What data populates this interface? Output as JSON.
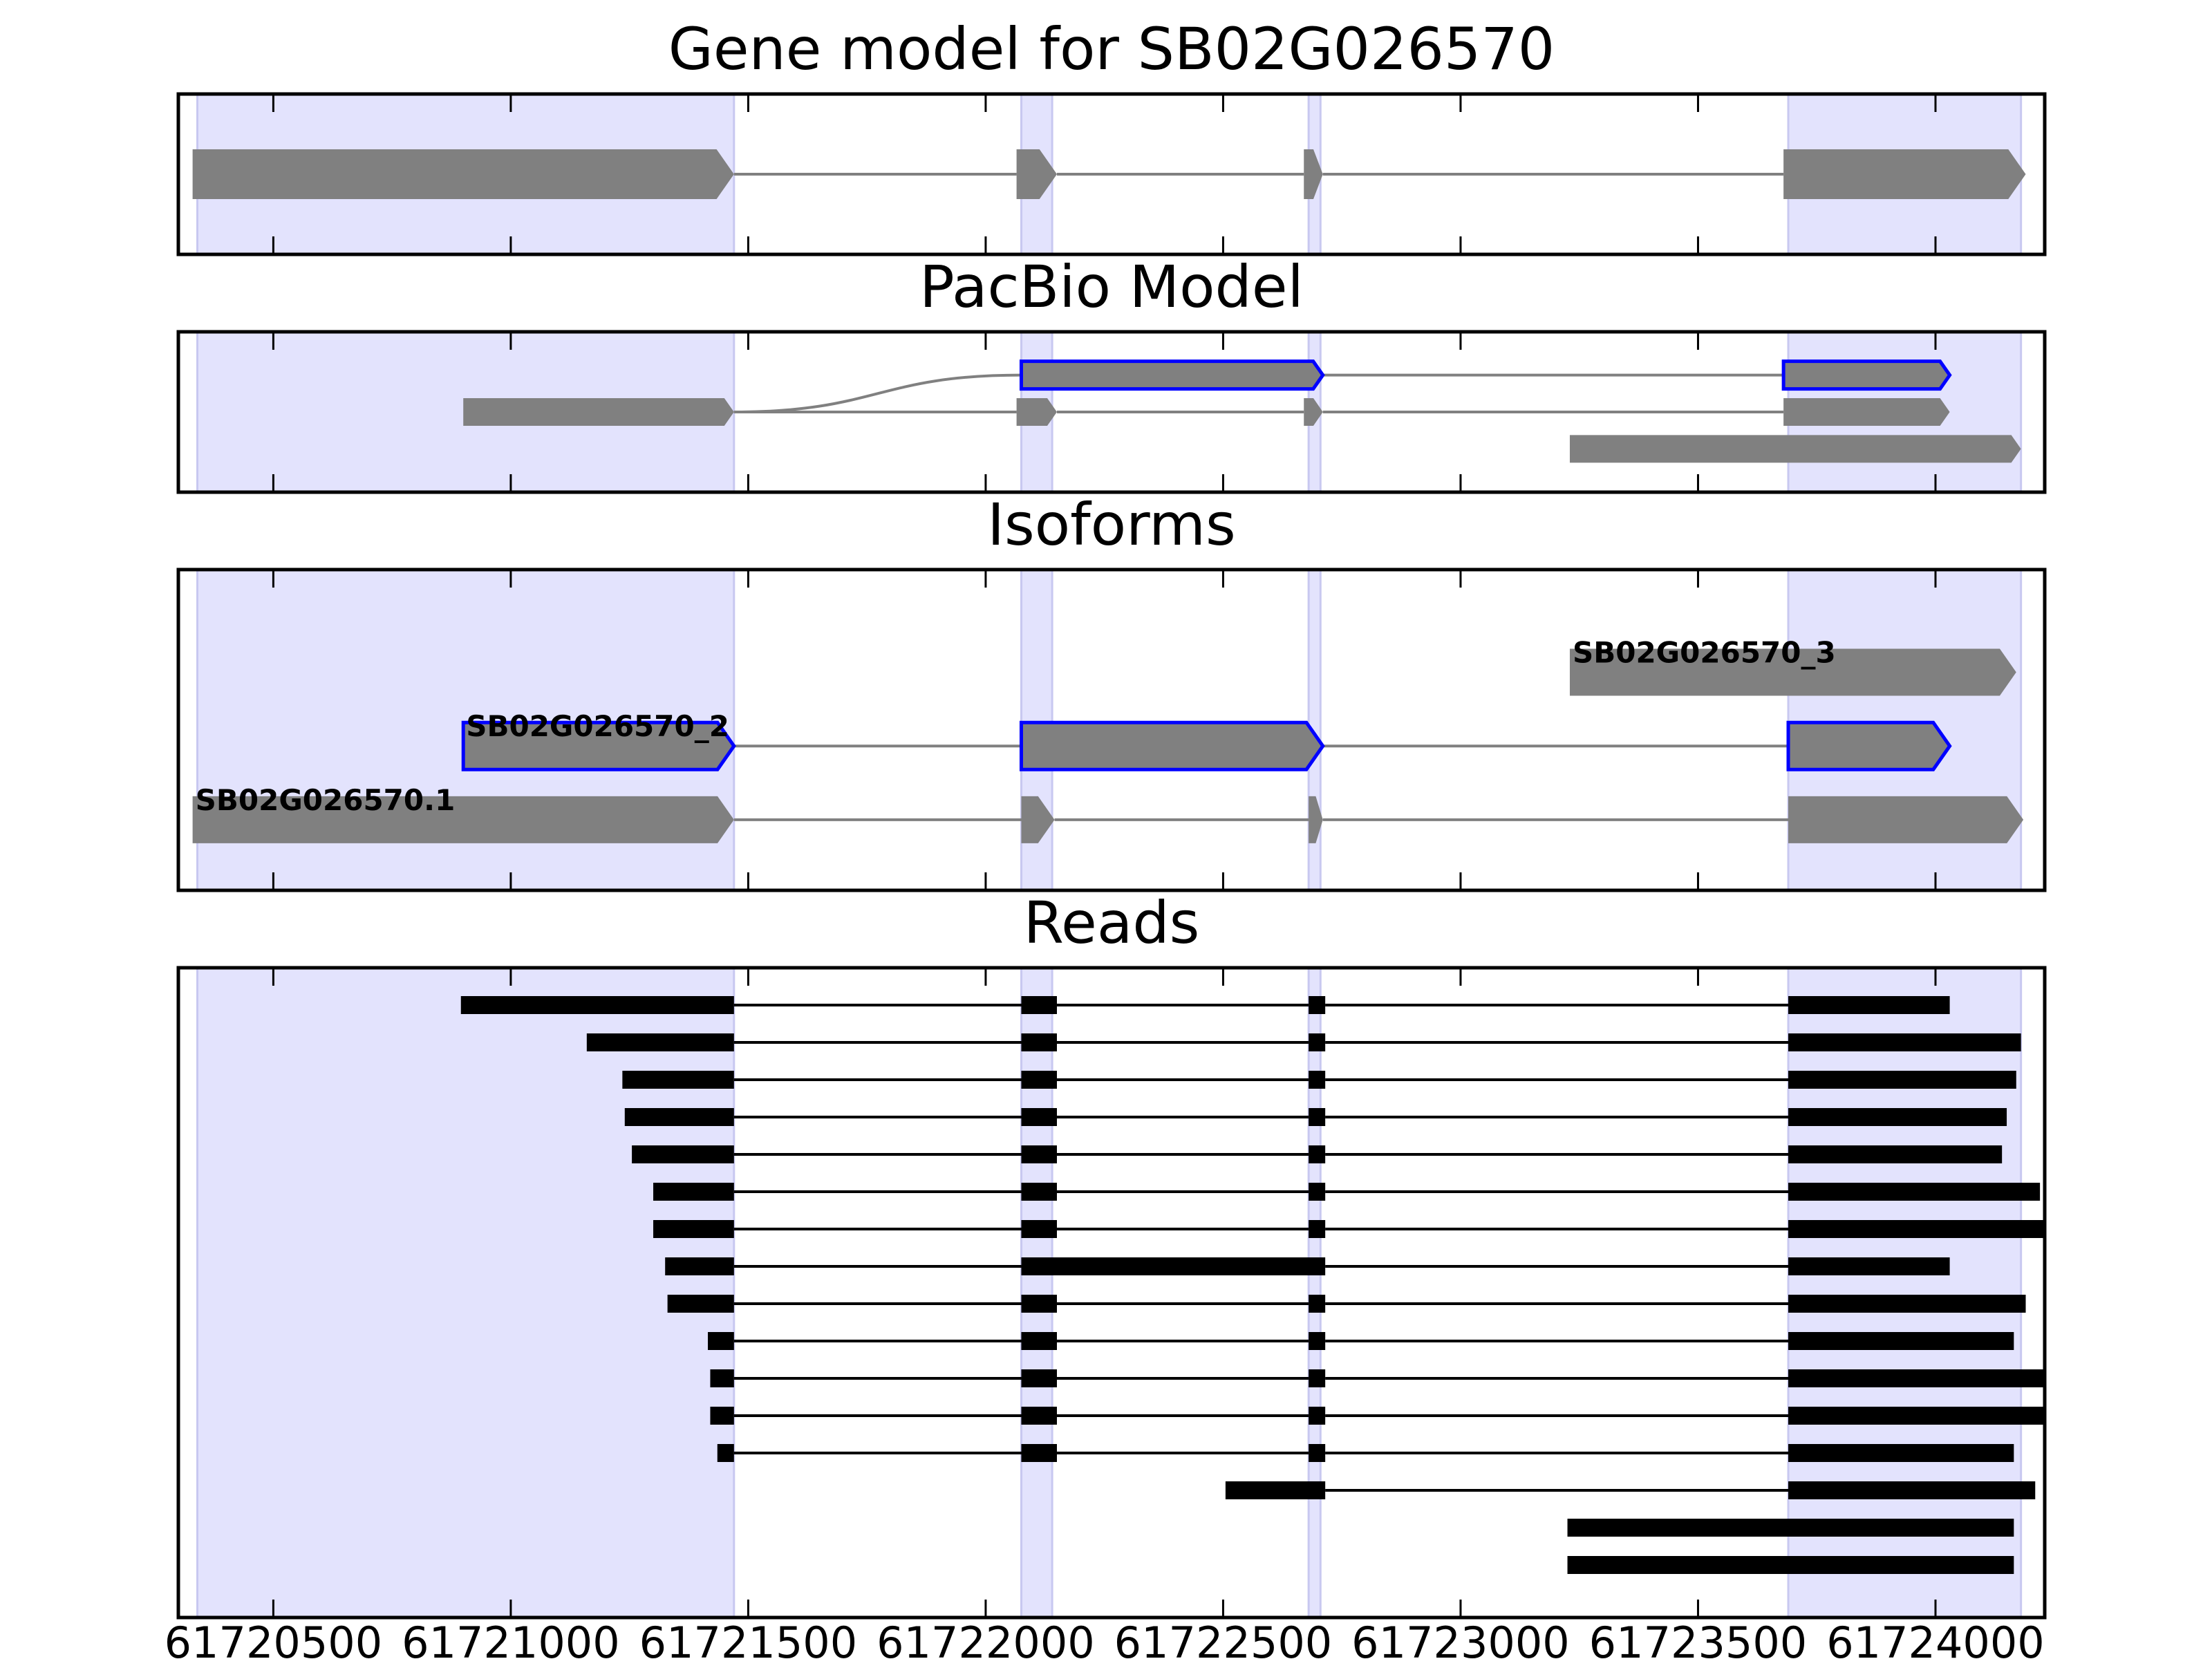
{
  "chart_data": {
    "type": "gene-track",
    "x_axis": {
      "xlim": [
        61720300,
        61724230
      ],
      "ticks": [
        61720500,
        61721000,
        61721500,
        61722000,
        61722500,
        61723000,
        61723500,
        61724000
      ],
      "tick_labels": [
        "61720500",
        "61721000",
        "61721500",
        "61722000",
        "61722500",
        "61723000",
        "61723500",
        "61724000"
      ]
    },
    "exon_highlights": [
      [
        61720340,
        61721470
      ],
      [
        61722075,
        61722140
      ],
      [
        61722680,
        61722705
      ],
      [
        61723690,
        61724180
      ]
    ],
    "panels": [
      {
        "key": "gene_model",
        "title": "Gene model for SB02G026570",
        "tracks": [
          {
            "y": 0.5,
            "exons": [
              [
                61720330,
                61721470
              ],
              [
                61722065,
                61722150
              ],
              [
                61722670,
                61722710
              ],
              [
                61723680,
                61724190
              ]
            ],
            "strand": "+",
            "highlight": false
          }
        ]
      },
      {
        "key": "pacbio_model",
        "title": "PacBio Model",
        "tracks": [
          {
            "y": 0.73,
            "exons": [
              [
                61722075,
                61722710
              ],
              [
                61723680,
                61724030
              ]
            ],
            "strand": "+",
            "highlight": true,
            "curved_from": [
              61721470,
              0.5
            ]
          },
          {
            "y": 0.5,
            "exons": [
              [
                61720900,
                61721470
              ],
              [
                61722065,
                61722150
              ],
              [
                61722670,
                61722710
              ],
              [
                61723680,
                61724030
              ]
            ],
            "strand": "+",
            "highlight": false
          },
          {
            "y": 0.27,
            "exons": [
              [
                61723230,
                61724180
              ]
            ],
            "strand": "+",
            "highlight": false
          }
        ]
      },
      {
        "key": "isoforms",
        "title": "Isoforms",
        "tracks": [
          {
            "y": 0.68,
            "label": "SB02G026570_3",
            "exons": [
              [
                61723230,
                61724170
              ]
            ],
            "strand": "+",
            "highlight": false
          },
          {
            "y": 0.45,
            "label": "SB02G026570_2",
            "exons": [
              [
                61720900,
                61721470
              ],
              [
                61722075,
                61722710
              ],
              [
                61723690,
                61724030
              ]
            ],
            "strand": "+",
            "highlight": true
          },
          {
            "y": 0.22,
            "label": "SB02G026570.1",
            "exons": [
              [
                61720330,
                61721470
              ],
              [
                61722075,
                61722145
              ],
              [
                61722680,
                61722710
              ],
              [
                61723690,
                61724185
              ]
            ],
            "strand": "+",
            "highlight": false
          }
        ]
      },
      {
        "key": "reads",
        "title": "Reads",
        "reads": [
          [
            [
              61720895,
              61721470
            ],
            [
              61722075,
              61722150
            ],
            [
              61722680,
              61722715
            ],
            [
              61723690,
              61724030
            ]
          ],
          [
            [
              61721160,
              61721470
            ],
            [
              61722075,
              61722150
            ],
            [
              61722680,
              61722715
            ],
            [
              61723690,
              61724180
            ]
          ],
          [
            [
              61721235,
              61721470
            ],
            [
              61722075,
              61722150
            ],
            [
              61722680,
              61722715
            ],
            [
              61723690,
              61724170
            ]
          ],
          [
            [
              61721240,
              61721470
            ],
            [
              61722075,
              61722150
            ],
            [
              61722680,
              61722715
            ],
            [
              61723690,
              61724150
            ]
          ],
          [
            [
              61721255,
              61721470
            ],
            [
              61722075,
              61722150
            ],
            [
              61722680,
              61722715
            ],
            [
              61723690,
              61724140
            ]
          ],
          [
            [
              61721300,
              61721470
            ],
            [
              61722075,
              61722150
            ],
            [
              61722680,
              61722715
            ],
            [
              61723690,
              61724220
            ]
          ],
          [
            [
              61721300,
              61721470
            ],
            [
              61722075,
              61722150
            ],
            [
              61722680,
              61722715
            ],
            [
              61723690,
              61724230
            ]
          ],
          [
            [
              61721325,
              61721470
            ],
            [
              61722075,
              61722715
            ],
            [
              61723690,
              61724030
            ]
          ],
          [
            [
              61721330,
              61721470
            ],
            [
              61722075,
              61722150
            ],
            [
              61722680,
              61722715
            ],
            [
              61723690,
              61724190
            ]
          ],
          [
            [
              61721415,
              61721470
            ],
            [
              61722075,
              61722150
            ],
            [
              61722680,
              61722715
            ],
            [
              61723690,
              61724165
            ]
          ],
          [
            [
              61721420,
              61721470
            ],
            [
              61722075,
              61722150
            ],
            [
              61722680,
              61722715
            ],
            [
              61723690,
              61724230
            ]
          ],
          [
            [
              61721420,
              61721470
            ],
            [
              61722075,
              61722150
            ],
            [
              61722680,
              61722715
            ],
            [
              61723690,
              61724230
            ]
          ],
          [
            [
              61721435,
              61721470
            ],
            [
              61722075,
              61722150
            ],
            [
              61722680,
              61722715
            ],
            [
              61723690,
              61724165
            ]
          ],
          [
            [
              61722505,
              61722715
            ],
            [
              61723690,
              61724210
            ]
          ],
          [
            [
              61723225,
              61724165
            ]
          ],
          [
            [
              61723225,
              61724165
            ]
          ]
        ]
      }
    ],
    "colors": {
      "highlight_band": "#e3e3fd",
      "highlight_band_edge": "#c8c8f0",
      "exon_fill": "#808080",
      "intron_line": "#808080",
      "selected_outline": "#0000ff",
      "read": "#000000"
    },
    "grid": false
  }
}
